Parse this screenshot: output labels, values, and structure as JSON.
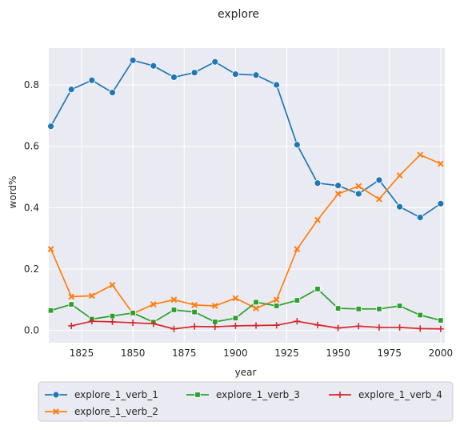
{
  "chart_data": {
    "type": "line",
    "title": "explore",
    "xlabel": "year",
    "ylabel": "word%",
    "xlim": [
      1809,
      2002
    ],
    "ylim": [
      -0.04,
      0.92
    ],
    "xticks": [
      1825,
      1850,
      1875,
      1900,
      1925,
      1950,
      1975,
      2000
    ],
    "yticks": [
      0.0,
      0.2,
      0.4,
      0.6,
      0.8
    ],
    "grid": true,
    "legend_position": "bottom",
    "series": [
      {
        "name": "explore_1_verb_1",
        "color": "#1f77b4",
        "marker": "circle",
        "x": [
          1810,
          1820,
          1830,
          1840,
          1850,
          1860,
          1870,
          1880,
          1890,
          1900,
          1910,
          1920,
          1930,
          1940,
          1950,
          1960,
          1970,
          1980,
          1990,
          2000
        ],
        "y": [
          0.665,
          0.785,
          0.815,
          0.775,
          0.88,
          0.862,
          0.825,
          0.84,
          0.875,
          0.835,
          0.832,
          0.8,
          0.605,
          0.48,
          0.472,
          0.445,
          0.49,
          0.403,
          0.368,
          0.413
        ]
      },
      {
        "name": "explore_1_verb_2",
        "color": "#ff7f0e",
        "marker": "x",
        "x": [
          1810,
          1820,
          1830,
          1840,
          1850,
          1860,
          1870,
          1880,
          1890,
          1900,
          1910,
          1920,
          1930,
          1940,
          1950,
          1960,
          1970,
          1980,
          1990,
          2000
        ],
        "y": [
          0.265,
          0.11,
          0.113,
          0.148,
          0.055,
          0.085,
          0.1,
          0.083,
          0.08,
          0.105,
          0.072,
          0.1,
          0.265,
          0.36,
          0.445,
          0.47,
          0.428,
          0.505,
          0.572,
          0.543
        ]
      },
      {
        "name": "explore_1_verb_3",
        "color": "#2ca02c",
        "marker": "square",
        "x": [
          1810,
          1820,
          1830,
          1840,
          1850,
          1860,
          1870,
          1880,
          1890,
          1900,
          1910,
          1920,
          1930,
          1940,
          1950,
          1960,
          1970,
          1980,
          1990,
          2000
        ],
        "y": [
          0.065,
          0.085,
          0.037,
          0.047,
          0.057,
          0.027,
          0.067,
          0.06,
          0.028,
          0.04,
          0.092,
          0.08,
          0.098,
          0.135,
          0.072,
          0.07,
          0.07,
          0.08,
          0.05,
          0.033
        ]
      },
      {
        "name": "explore_1_verb_4",
        "color": "#d62728",
        "marker": "plus",
        "x": [
          1820,
          1830,
          1840,
          1850,
          1860,
          1870,
          1880,
          1890,
          1900,
          1910,
          1920,
          1930,
          1940,
          1950,
          1960,
          1970,
          1980,
          1990,
          2000
        ],
        "y": [
          0.015,
          0.03,
          0.028,
          0.025,
          0.022,
          0.005,
          0.013,
          0.012,
          0.015,
          0.016,
          0.017,
          0.03,
          0.018,
          0.008,
          0.014,
          0.01,
          0.01,
          0.006,
          0.005
        ]
      }
    ]
  }
}
